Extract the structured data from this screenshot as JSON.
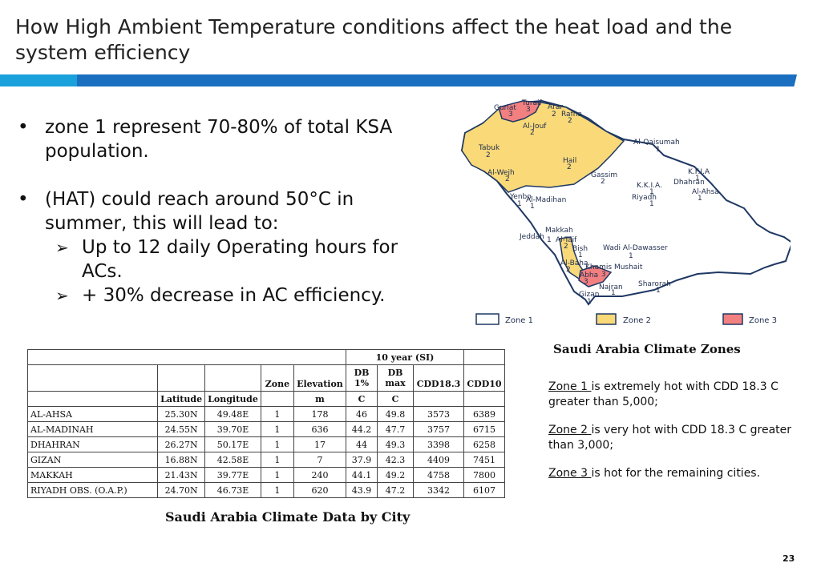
{
  "title": "How High Ambient Temperature conditions affect the heat load and the system efficiency",
  "bullets": {
    "b1": "zone 1 represent 70-80% of total KSA population.",
    "b2": "(HAT) could reach around 50°C in summer, this will lead to:",
    "s1": "Up to 12 daily Operating hours for ACs.",
    "s2": "+ 30% decrease in AC efficiency."
  },
  "map": {
    "caption": "Saudi Arabia Climate Zones",
    "legend": [
      "Zone 1",
      "Zone 2",
      "Zone 3"
    ],
    "colors": {
      "zone1": "#ffffff",
      "zone2": "#f9d978",
      "zone3": "#f28080",
      "outline": "#1f3864"
    },
    "labels": [
      {
        "name": "Turaif",
        "zone": "3"
      },
      {
        "name": "Guriat",
        "zone": "3"
      },
      {
        "name": "Arar",
        "zone": "2"
      },
      {
        "name": "Rafha",
        "zone": "2"
      },
      {
        "name": "Al-Jouf",
        "zone": "2"
      },
      {
        "name": "Al-Qaisumah",
        "zone": "1"
      },
      {
        "name": "Tabuk",
        "zone": "2"
      },
      {
        "name": "Hail",
        "zone": "2"
      },
      {
        "name": "Al-Wejh",
        "zone": "2"
      },
      {
        "name": "Gassim",
        "zone": "2"
      },
      {
        "name": "K.F.I.A",
        "zone": "1"
      },
      {
        "name": "K.K.I.A.",
        "zone": "1"
      },
      {
        "name": "Dhahran",
        "zone": "1"
      },
      {
        "name": "Al-Ahsa",
        "zone": "1"
      },
      {
        "name": "Riyadh",
        "zone": "1"
      },
      {
        "name": "Yenbo",
        "zone": "1"
      },
      {
        "name": "Al-Madihan",
        "zone": "1"
      },
      {
        "name": "Makkah",
        "zone": "1"
      },
      {
        "name": "Jeddah",
        "zone": "1"
      },
      {
        "name": "Al-Taif",
        "zone": "2"
      },
      {
        "name": "Bish",
        "zone": "1"
      },
      {
        "name": "Wadi Al-Dawasser",
        "zone": "1"
      },
      {
        "name": "Al-Baha",
        "zone": "2"
      },
      {
        "name": "Khamis Mushait",
        "zone": "3"
      },
      {
        "name": "Abha",
        "zone": "3"
      },
      {
        "name": "Najran",
        "zone": "1"
      },
      {
        "name": "Sharorah",
        "zone": "1"
      },
      {
        "name": "Gizan",
        "zone": "1"
      }
    ]
  },
  "zones_text": [
    {
      "label": "Zone 1 ",
      "text": "is extremely hot with CDD 18.3 C greater than 5,000;"
    },
    {
      "label": "Zone 2 ",
      "text": "is very hot with CDD 18.3 C greater than 3,000;"
    },
    {
      "label": "Zone 3 ",
      "text": "is hot for the remaining cities."
    }
  ],
  "table": {
    "caption": "Saudi Arabia Climate Data by City",
    "group_header": "10 year (SI)",
    "headers": [
      "",
      "",
      "",
      "Zone",
      "Elevation",
      "DB 1%",
      "DB max",
      "CDD18.3",
      "CDD10"
    ],
    "units": [
      "",
      "Latitude",
      "Longitude",
      "",
      "m",
      "C",
      "C",
      "",
      ""
    ],
    "rows": [
      [
        "AL-AHSA",
        "25.30N",
        "49.48E",
        "1",
        "178",
        "46",
        "49.8",
        "3573",
        "6389"
      ],
      [
        "AL-MADINAH",
        "24.55N",
        "39.70E",
        "1",
        "636",
        "44.2",
        "47.7",
        "3757",
        "6715"
      ],
      [
        "DHAHRAN",
        "26.27N",
        "50.17E",
        "1",
        "17",
        "44",
        "49.3",
        "3398",
        "6258"
      ],
      [
        "GIZAN",
        "16.88N",
        "42.58E",
        "1",
        "7",
        "37.9",
        "42.3",
        "4409",
        "7451"
      ],
      [
        "MAKKAH",
        "21.43N",
        "39.77E",
        "1",
        "240",
        "44.1",
        "49.2",
        "4758",
        "7800"
      ],
      [
        "RIYADH OBS. (O.A.P.)",
        "24.70N",
        "46.73E",
        "1",
        "620",
        "43.9",
        "47.2",
        "3342",
        "6107"
      ]
    ]
  },
  "page_number": "23"
}
